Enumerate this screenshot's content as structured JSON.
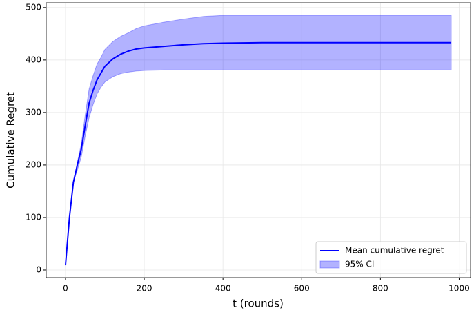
{
  "chart_data": {
    "type": "line_band",
    "xlabel": "t (rounds)",
    "ylabel": "Cumulative Regret",
    "x": [
      0,
      10,
      20,
      30,
      40,
      50,
      60,
      70,
      80,
      90,
      100,
      120,
      140,
      160,
      180,
      200,
      250,
      300,
      350,
      400,
      500,
      600,
      700,
      800,
      900,
      980
    ],
    "series": [
      {
        "name": "Mean cumulative regret",
        "color": "#0000ff",
        "kind": "line",
        "values": [
          9,
          100,
          167,
          200,
          230,
          275,
          318,
          342,
          362,
          375,
          388,
          402,
          411,
          417,
          421,
          423,
          426,
          429,
          431,
          432,
          433,
          433,
          433,
          433,
          433,
          433
        ]
      },
      {
        "name": "95% CI",
        "color": "#0000ff",
        "opacity": 0.3,
        "kind": "band",
        "upper": [
          9,
          100,
          167,
          205,
          240,
          295,
          345,
          370,
          392,
          405,
          420,
          435,
          445,
          452,
          460,
          465,
          472,
          478,
          483,
          485,
          485,
          485,
          485,
          485,
          485,
          485
        ],
        "lower": [
          9,
          100,
          167,
          190,
          215,
          255,
          290,
          315,
          335,
          348,
          358,
          368,
          374,
          377,
          379,
          380,
          381,
          381,
          381,
          381,
          381,
          381,
          381,
          381,
          381,
          381
        ]
      }
    ],
    "xlim": [
      -49,
      1029
    ],
    "ylim": [
      -14.5,
      509
    ],
    "xticks": [
      0,
      200,
      400,
      600,
      800,
      1000
    ],
    "yticks": [
      0,
      100,
      200,
      300,
      400,
      500
    ],
    "grid": true,
    "legend": "lower right"
  }
}
